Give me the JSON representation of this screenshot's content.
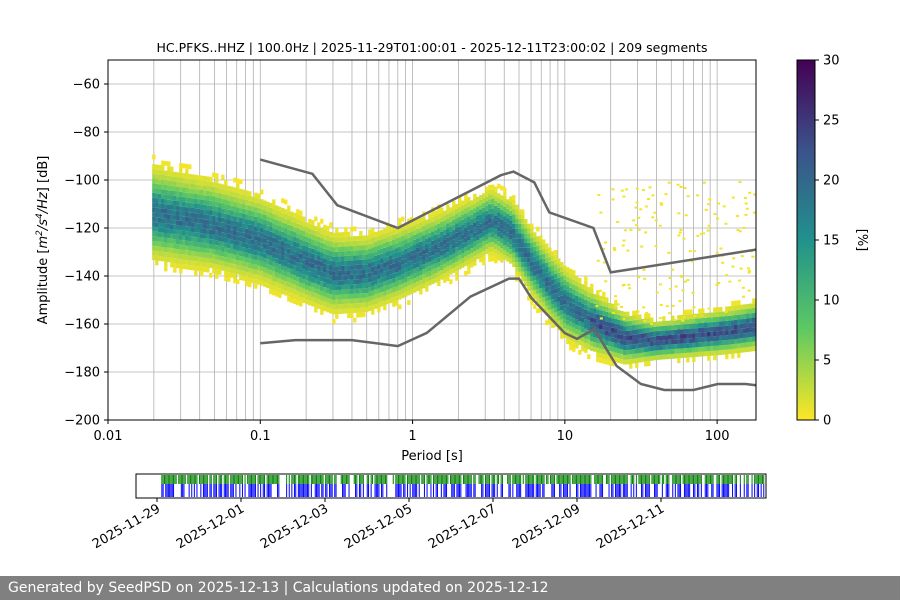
{
  "chart_data": [
    {
      "type": "heatmap",
      "title": "HC.PFKS..HHZ | 100.0Hz | 2025-11-29T01:00:01 - 2025-12-11T23:00:02 | 209 segments",
      "xlabel": "Period [s]",
      "ylabel_parts": [
        "Amplitude [",
        "m",
        "2",
        "/",
        "s",
        "4",
        "/",
        "Hz",
        "] [dB]"
      ],
      "xscale": "log",
      "xlim": [
        0.01,
        180
      ],
      "ylim": [
        -200,
        -50
      ],
      "x_ticks": [
        {
          "value": 0.01,
          "label": "0.01"
        },
        {
          "value": 0.1,
          "label": "0.1"
        },
        {
          "value": 1,
          "label": "1"
        },
        {
          "value": 10,
          "label": "10"
        },
        {
          "value": 100,
          "label": "100"
        }
      ],
      "y_ticks": [
        {
          "value": -60,
          "label": "−60"
        },
        {
          "value": -80,
          "label": "−80"
        },
        {
          "value": -100,
          "label": "−100"
        },
        {
          "value": -120,
          "label": "−120"
        },
        {
          "value": -140,
          "label": "−140"
        },
        {
          "value": -160,
          "label": "−160"
        },
        {
          "value": -180,
          "label": "−180"
        },
        {
          "value": -200,
          "label": "−200"
        }
      ],
      "grid": true,
      "colormap": "viridis_r",
      "colorbar": {
        "label": "[%]",
        "range": [
          0,
          30
        ],
        "ticks": [
          {
            "value": 0,
            "label": "0"
          },
          {
            "value": 5,
            "label": "5"
          },
          {
            "value": 10,
            "label": "10"
          },
          {
            "value": 15,
            "label": "15"
          },
          {
            "value": 20,
            "label": "20"
          },
          {
            "value": 25,
            "label": "25"
          },
          {
            "value": 30,
            "label": "30"
          }
        ],
        "colors": [
          "#fde725",
          "#5ec962",
          "#21918c",
          "#3b528b",
          "#440154"
        ]
      },
      "density_summary": {
        "mode_curve": [
          [
            0.02,
            -113
          ],
          [
            0.05,
            -118
          ],
          [
            0.1,
            -124
          ],
          [
            0.2,
            -133
          ],
          [
            0.3,
            -138
          ],
          [
            0.5,
            -138
          ],
          [
            0.8,
            -134
          ],
          [
            1.5,
            -127
          ],
          [
            2.5,
            -120
          ],
          [
            3.3,
            -116
          ],
          [
            4.5,
            -121
          ],
          [
            6,
            -133
          ],
          [
            8,
            -143
          ],
          [
            10,
            -150
          ],
          [
            15,
            -158
          ],
          [
            25,
            -165
          ],
          [
            40,
            -166
          ],
          [
            70,
            -164
          ],
          [
            120,
            -162
          ],
          [
            180,
            -160
          ]
        ],
        "spread_db": [
          [
            0.02,
            12
          ],
          [
            0.3,
            10
          ],
          [
            3.3,
            8
          ],
          [
            10,
            9
          ],
          [
            40,
            5
          ],
          [
            180,
            6
          ]
        ]
      },
      "noise_models": {
        "nhnm": {
          "name": "NHNM",
          "x": [
            0.1,
            0.22,
            0.32,
            0.8,
            3.8,
            4.6,
            6.3,
            7.9,
            15.4,
            20,
            180
          ],
          "y": [
            -91.5,
            -97.4,
            -110.5,
            -120,
            -98,
            -96.5,
            -101,
            -113.5,
            -120,
            -138.5,
            -129
          ]
        },
        "nlnm": {
          "name": "NLNM",
          "x": [
            0.1,
            0.17,
            0.4,
            0.8,
            1.24,
            2.4,
            4.3,
            5.0,
            6.0,
            10.0,
            12.0,
            15.6,
            21.9,
            31.6,
            45,
            70,
            101,
            154,
            180
          ],
          "y": [
            -168,
            -166.7,
            -166.7,
            -169.2,
            -163.7,
            -148.6,
            -141.1,
            -141.1,
            -149,
            -163.8,
            -166.2,
            -162.1,
            -177.5,
            -185,
            -187.5,
            -187.5,
            -185,
            -185,
            -185.5
          ]
        }
      }
    },
    {
      "type": "timeline",
      "date_range": [
        "2025-11-28T12:00:00",
        "2025-12-13T12:00:00"
      ],
      "x_ticks": [
        {
          "value": "2025-11-29",
          "label": "2025-11-29"
        },
        {
          "value": "2025-12-01",
          "label": "2025-12-01"
        },
        {
          "value": "2025-12-03",
          "label": "2025-12-03"
        },
        {
          "value": "2025-12-05",
          "label": "2025-12-05"
        },
        {
          "value": "2025-12-07",
          "label": "2025-12-07"
        },
        {
          "value": "2025-12-09",
          "label": "2025-12-09"
        },
        {
          "value": "2025-12-11",
          "label": "2025-12-11"
        }
      ],
      "colors": {
        "data_available": "#008000",
        "psd_used": "#0000ff"
      },
      "segment_count": 209
    }
  ],
  "footer": {
    "text": "Generated by SeedPSD on 2025-12-13 | Calculations updated on 2025-12-12"
  }
}
